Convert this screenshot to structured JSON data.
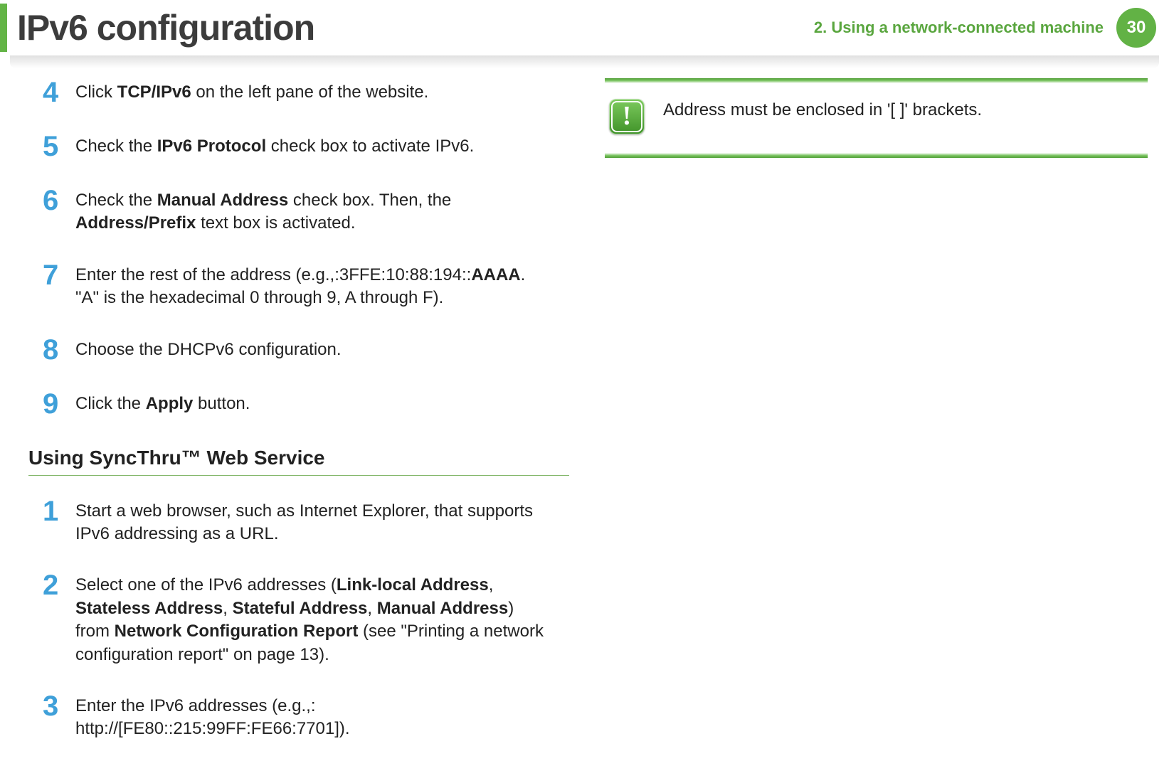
{
  "header": {
    "title": "IPv6 configuration",
    "chapter_label": "2.  Using a network-connected machine",
    "page_number": "30"
  },
  "steps_a": [
    {
      "num": "4",
      "html": "Click <b>TCP/IPv6</b> on the left pane of the website."
    },
    {
      "num": "5",
      "html": "Check the <b>IPv6 Protocol</b> check box to activate IPv6."
    },
    {
      "num": "6",
      "html": "Check the <b>Manual Address</b> check box. Then, the <b>Address/Prefix</b> text box is activated."
    },
    {
      "num": "7",
      "html": "Enter the rest of the address (e.g.,:3FFE:10:88:194::<b>AAAA</b>. \"A\" is the hexadecimal 0 through 9, A through F)."
    },
    {
      "num": "8",
      "html": "Choose the DHCPv6 configuration."
    },
    {
      "num": "9",
      "html": "Click the <b>Apply</b> button."
    }
  ],
  "section_heading": "Using SyncThru™ Web Service",
  "steps_b": [
    {
      "num": "1",
      "html": "Start a web browser, such as Internet Explorer, that supports IPv6 addressing as a URL."
    },
    {
      "num": "2",
      "html": "Select one of the IPv6 addresses (<b>Link-local Address</b>, <b>Stateless Address</b>, <b>Stateful Address</b>, <b>Manual Address</b>) from <b>Network Configuration Report</b> (see \"Printing a network configuration report\" on page 13)."
    },
    {
      "num": "3",
      "html": "Enter the IPv6 addresses (e.g.,: http://[FE80::215:99FF:FE66:7701])."
    }
  ],
  "callout": {
    "icon_glyph": "!",
    "text": "Address must be enclosed in '[ ]' brackets."
  },
  "colors": {
    "accent_green": "#62b245",
    "accent_blue": "#3fa0d9"
  }
}
